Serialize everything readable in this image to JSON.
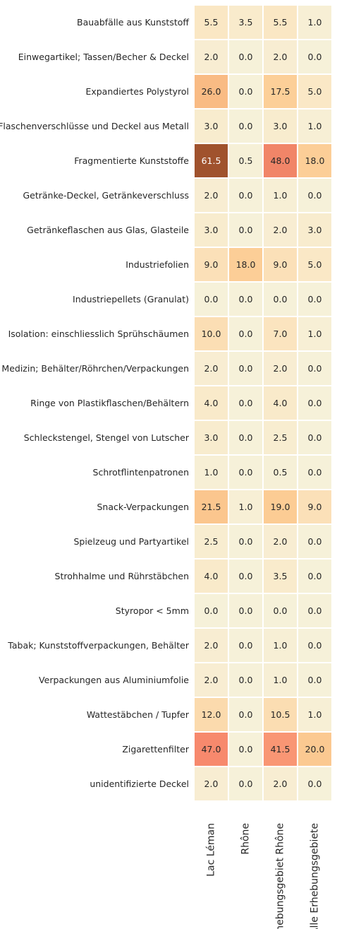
{
  "chart_data": {
    "type": "heatmap",
    "title": "",
    "xlabel": "",
    "ylabel": "",
    "columns": [
      "Lac Léman",
      "Rhône",
      "Erhebungsgebiet Rhône",
      "Alle Erhebungsgebiete"
    ],
    "rows": [
      "Bauabfälle aus Kunststoff",
      "Einwegartikel; Tassen/Becher & Deckel",
      "Expandiertes Polystyrol",
      "Flaschenverschlüsse und Deckel aus Metall",
      "Fragmentierte Kunststoffe",
      "Getränke-Deckel, Getränkeverschluss",
      "Getränkeflaschen aus Glas, Glasteile",
      "Industriefolien",
      "Industriepellets (Granulat)",
      "Isolation: einschliesslich Sprühschäumen",
      "Medizin; Behälter/Röhrchen/Verpackungen",
      "Ringe von Plastikflaschen/Behältern",
      "Schleckstengel, Stengel von Lutscher",
      "Schrotflintenpatronen",
      "Snack-Verpackungen",
      "Spielzeug und Partyartikel",
      "Strohhalme und Rührstäbchen",
      "Styropor < 5mm",
      "Tabak; Kunststoffverpackungen, Behälter",
      "Verpackungen aus Aluminiumfolie",
      "Wattestäbchen / Tupfer",
      "Zigarettenfilter",
      "unidentifizierte Deckel"
    ],
    "values": [
      [
        5.5,
        3.5,
        5.5,
        1.0
      ],
      [
        2.0,
        0.0,
        2.0,
        0.0
      ],
      [
        26.0,
        0.0,
        17.5,
        5.0
      ],
      [
        3.0,
        0.0,
        3.0,
        1.0
      ],
      [
        61.5,
        0.5,
        48.0,
        18.0
      ],
      [
        2.0,
        0.0,
        1.0,
        0.0
      ],
      [
        3.0,
        0.0,
        2.0,
        3.0
      ],
      [
        9.0,
        18.0,
        9.0,
        5.0
      ],
      [
        0.0,
        0.0,
        0.0,
        0.0
      ],
      [
        10.0,
        0.0,
        7.0,
        1.0
      ],
      [
        2.0,
        0.0,
        2.0,
        0.0
      ],
      [
        4.0,
        0.0,
        4.0,
        0.0
      ],
      [
        3.0,
        0.0,
        2.5,
        0.0
      ],
      [
        1.0,
        0.0,
        0.5,
        0.0
      ],
      [
        21.5,
        1.0,
        19.0,
        9.0
      ],
      [
        2.5,
        0.0,
        2.0,
        0.0
      ],
      [
        4.0,
        0.0,
        3.5,
        0.0
      ],
      [
        0.0,
        0.0,
        0.0,
        0.0
      ],
      [
        2.0,
        0.0,
        1.0,
        0.0
      ],
      [
        2.0,
        0.0,
        1.0,
        0.0
      ],
      [
        12.0,
        0.0,
        10.5,
        1.0
      ],
      [
        47.0,
        0.0,
        41.5,
        20.0
      ],
      [
        2.0,
        0.0,
        2.0,
        0.0
      ]
    ],
    "value_format": "one decimal",
    "colorbar": false,
    "grid": false,
    "colors": {
      "low": "#f6f1d9",
      "light": "#fbe6c2",
      "mid": "#fccd95",
      "orange": "#f9bb84",
      "salmon": "#f98a6e",
      "high": "#a0522d",
      "text_dark": "#262626",
      "text_light": "#ffffff",
      "cell_border": "#ffffff"
    }
  }
}
